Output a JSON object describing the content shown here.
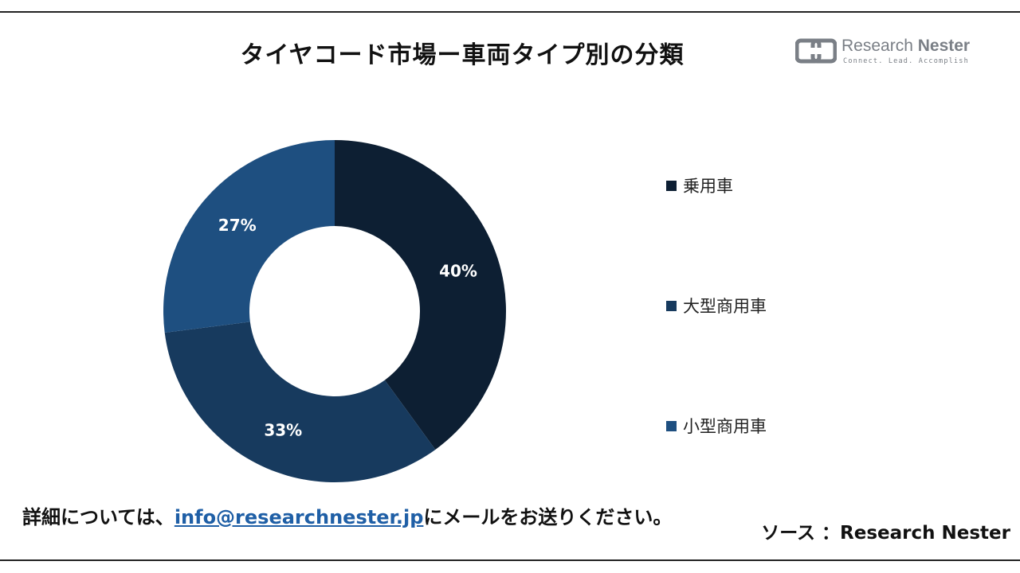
{
  "header": {
    "title": "タイヤコード市場ー車両タイプ別の分類"
  },
  "logo": {
    "name_part1": "Research",
    "name_part2": "Nester",
    "tagline": "Connect. Lead. Accomplish"
  },
  "chart_data": {
    "type": "pie",
    "donut": true,
    "categories": [
      "乗用車",
      "大型商用車",
      "小型商用車"
    ],
    "values": [
      40,
      33,
      27
    ],
    "labels": [
      "40%",
      "33%",
      "27%"
    ],
    "colors": [
      "#0d1f33",
      "#173a5e",
      "#1e4f80"
    ],
    "legend_position": "right"
  },
  "footer": {
    "note_prefix": "詳細については、",
    "email": "info@researchnester.jp",
    "note_suffix": "にメールをお送りください。",
    "source": "ソース ：Research Nester"
  }
}
